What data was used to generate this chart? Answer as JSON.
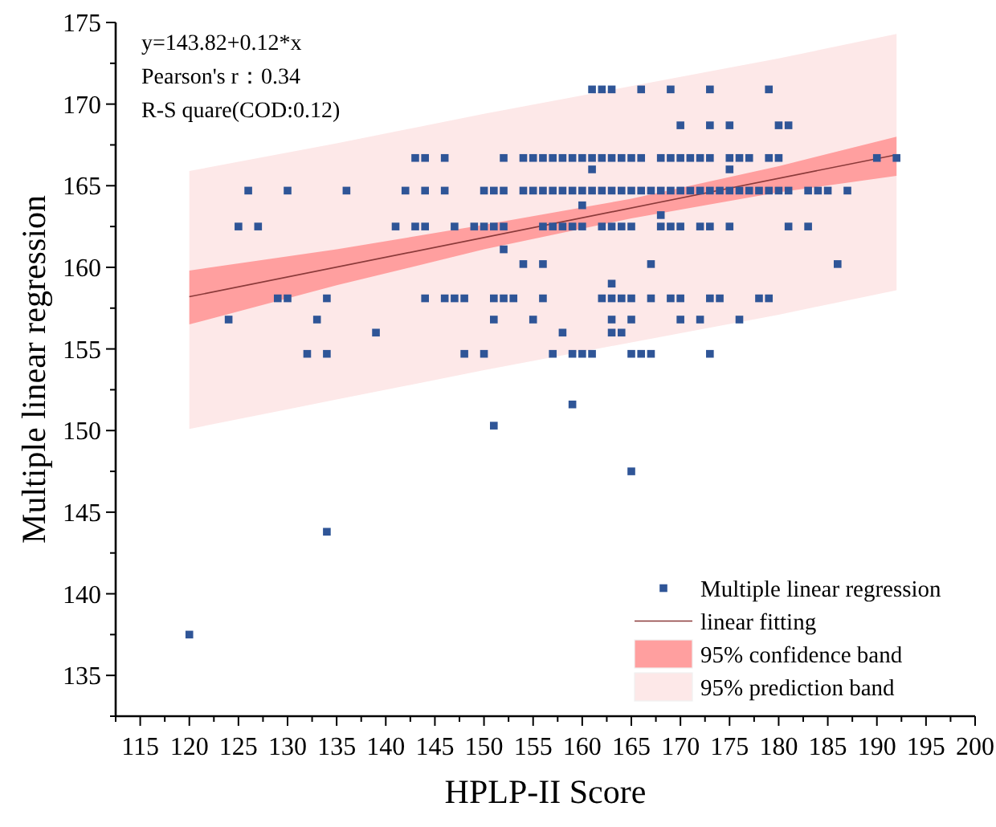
{
  "chart_data": {
    "type": "scatter",
    "xlabel": "HPLP-II Score",
    "ylabel": "Multiple linear regression",
    "annotations": [
      "y=143.82+0.12*x",
      "Pearson's r：0.34",
      "R-S quare(COD:0.12)"
    ],
    "xlim": [
      112.5,
      200
    ],
    "ylim": [
      132.5,
      175
    ],
    "xticks": [
      115,
      120,
      125,
      130,
      135,
      140,
      145,
      150,
      155,
      160,
      165,
      170,
      175,
      180,
      185,
      190,
      195,
      200
    ],
    "yticks": [
      135,
      140,
      145,
      150,
      155,
      160,
      165,
      170,
      175
    ],
    "legend": "bottom right",
    "series": [
      {
        "name": "Multiple linear regression",
        "marker": "square",
        "color": "#2f5597",
        "x": [
          143,
          144,
          146,
          152,
          154,
          155,
          156,
          157,
          158,
          159,
          160,
          161,
          162,
          163,
          164,
          165,
          166,
          168,
          169,
          170,
          171,
          172,
          173,
          175,
          176,
          177,
          179,
          180,
          190,
          192,
          126,
          130,
          136,
          142,
          144,
          146,
          150,
          151,
          152,
          154,
          155,
          156,
          157,
          158,
          159,
          160,
          161,
          162,
          163,
          164,
          165,
          166,
          167,
          168,
          169,
          170,
          171,
          172,
          173,
          174,
          175,
          176,
          177,
          178,
          179,
          180,
          181,
          183,
          184,
          185,
          187,
          125,
          127,
          141,
          143,
          144,
          147,
          149,
          150,
          151,
          152,
          156,
          157,
          158,
          159,
          160,
          162,
          163,
          164,
          165,
          168,
          169,
          170,
          172,
          173,
          175,
          181,
          183,
          161,
          162,
          163,
          166,
          169,
          173,
          179,
          170,
          173,
          175,
          180,
          181,
          161,
          175,
          160,
          168,
          152,
          154,
          156,
          167,
          186,
          163,
          129,
          130,
          134,
          144,
          146,
          147,
          148,
          151,
          152,
          153,
          156,
          162,
          163,
          164,
          165,
          167,
          169,
          170,
          173,
          174,
          178,
          179,
          124,
          133,
          151,
          155,
          163,
          165,
          170,
          172,
          176,
          139,
          158,
          163,
          164,
          132,
          134,
          148,
          150,
          157,
          159,
          160,
          161,
          165,
          166,
          167,
          173,
          159,
          120,
          134,
          151,
          165
        ],
        "values": [
          166.7,
          166.7,
          166.7,
          166.7,
          166.7,
          166.7,
          166.7,
          166.7,
          166.7,
          166.7,
          166.7,
          166.7,
          166.7,
          166.7,
          166.7,
          166.7,
          166.7,
          166.7,
          166.7,
          166.7,
          166.7,
          166.7,
          166.7,
          166.7,
          166.7,
          166.7,
          166.7,
          166.7,
          166.7,
          166.7,
          164.7,
          164.7,
          164.7,
          164.7,
          164.7,
          164.7,
          164.7,
          164.7,
          164.7,
          164.7,
          164.7,
          164.7,
          164.7,
          164.7,
          164.7,
          164.7,
          164.7,
          164.7,
          164.7,
          164.7,
          164.7,
          164.7,
          164.7,
          164.7,
          164.7,
          164.7,
          164.7,
          164.7,
          164.7,
          164.7,
          164.7,
          164.7,
          164.7,
          164.7,
          164.7,
          164.7,
          164.7,
          164.7,
          164.7,
          164.7,
          164.7,
          162.5,
          162.5,
          162.5,
          162.5,
          162.5,
          162.5,
          162.5,
          162.5,
          162.5,
          162.5,
          162.5,
          162.5,
          162.5,
          162.5,
          162.5,
          162.5,
          162.5,
          162.5,
          162.5,
          162.5,
          162.5,
          162.5,
          162.5,
          162.5,
          162.5,
          162.5,
          162.5,
          170.9,
          170.9,
          170.9,
          170.9,
          170.9,
          170.9,
          170.9,
          168.7,
          168.7,
          168.7,
          168.7,
          168.7,
          166.0,
          166.0,
          163.8,
          163.2,
          161.1,
          160.2,
          160.2,
          160.2,
          160.2,
          159.0,
          158.1,
          158.1,
          158.1,
          158.1,
          158.1,
          158.1,
          158.1,
          158.1,
          158.1,
          158.1,
          158.1,
          158.1,
          158.1,
          158.1,
          158.1,
          158.1,
          158.1,
          158.1,
          158.1,
          158.1,
          158.1,
          158.1,
          156.8,
          156.8,
          156.8,
          156.8,
          156.8,
          156.8,
          156.8,
          156.8,
          156.8,
          156.0,
          156.0,
          156.0,
          156.0,
          154.7,
          154.7,
          154.7,
          154.7,
          154.7,
          154.7,
          154.7,
          154.7,
          154.7,
          154.7,
          154.7,
          154.7,
          151.6,
          137.5,
          143.8,
          150.3,
          147.5
        ]
      },
      {
        "name": "linear fitting",
        "type": "line",
        "color": "#8b3a3a",
        "x": [
          120,
          192
        ],
        "values": [
          158.2,
          166.9
        ]
      },
      {
        "name": "95% confidence band",
        "type": "line",
        "color": "#ff9f9f",
        "x": [
          120,
          135,
          150,
          165,
          180,
          192
        ],
        "values": [
          null,
          null,
          null,
          null,
          null,
          null
        ],
        "lower": [
          156.5,
          158.9,
          161.1,
          163.0,
          164.6,
          165.6
        ],
        "upper": [
          159.8,
          161.1,
          162.6,
          164.2,
          166.2,
          168.0
        ]
      },
      {
        "name": "95% prediction band",
        "type": "line",
        "color": "#fde8e8",
        "x": [
          120,
          135,
          150,
          165,
          180,
          192
        ],
        "values": [
          null,
          null,
          null,
          null,
          null,
          null
        ],
        "lower": [
          150.1,
          151.9,
          153.7,
          155.4,
          157.1,
          158.6
        ],
        "upper": [
          165.9,
          167.6,
          169.4,
          171.1,
          172.8,
          174.3
        ]
      }
    ]
  }
}
